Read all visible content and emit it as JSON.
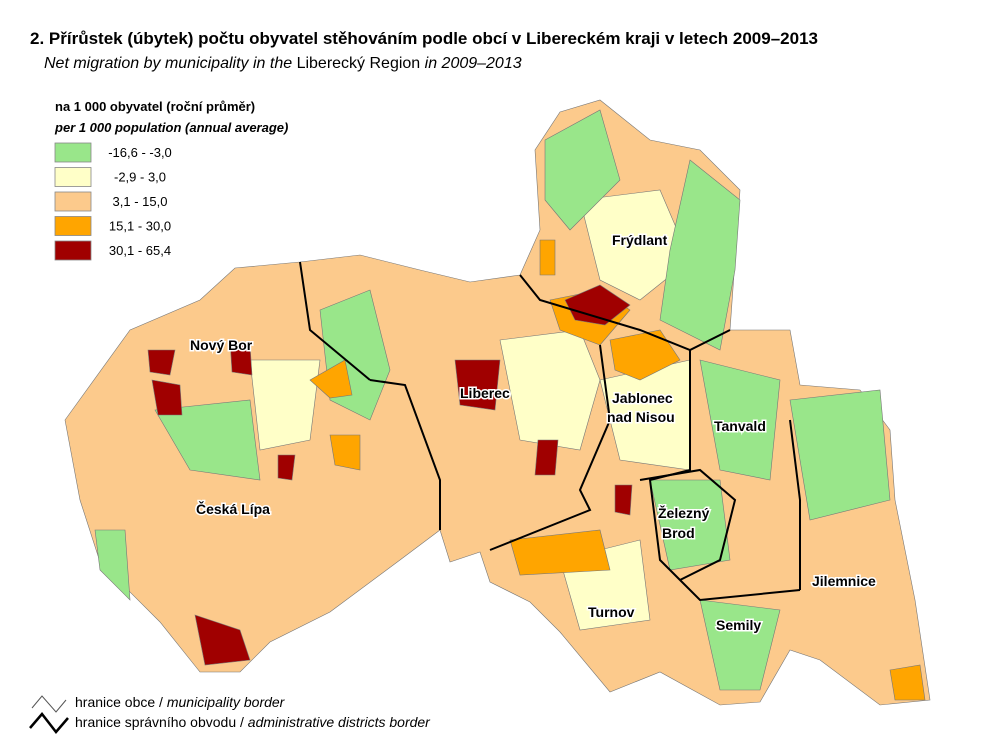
{
  "header": {
    "title": "2. Přírůstek (úbytek) počtu obyvatel stěhováním podle obcí v Libereckém kraji v letech 2009–2013",
    "subtitle": [
      "Net migration by municipality in the",
      "Liberecký Region",
      "in 2009–2013"
    ]
  },
  "legend": {
    "title": "na 1 000 obyvatel (roční průměr)",
    "title_en": "per 1 000 population (annual average)",
    "items": [
      {
        "label": "-16,6 -  -3,0",
        "color": "#99e68a"
      },
      {
        "label": "-2,9 -   3,0",
        "color": "#ffffc8"
      },
      {
        "label": "3,1 - 15,0",
        "color": "#fcca8c"
      },
      {
        "label": "15,1 - 30,0",
        "color": "#ffa500"
      },
      {
        "label": "30,1 - 65,4",
        "color": "#a00000"
      }
    ]
  },
  "regions": [
    "Frýdlant",
    "Nový Bor",
    "Liberec",
    "Jablonec",
    "nad Nisou",
    "Tanvald",
    "Česká Lípa",
    "Železný",
    "Brod",
    "Jilemnice",
    "Turnov",
    "Semily"
  ],
  "borders": [
    {
      "cz": "hranice obce /",
      "en": "municipality border"
    },
    {
      "cz": "hranice správního obvodu /",
      "en": "administrative districts border"
    }
  ]
}
